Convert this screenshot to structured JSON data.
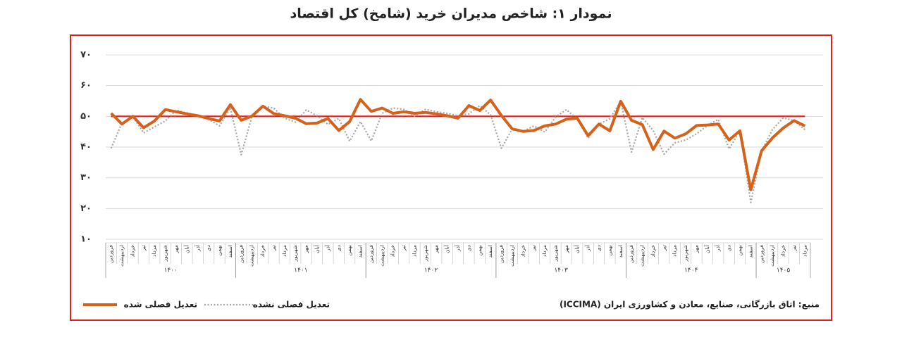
{
  "chart_data": {
    "type": "line",
    "title": "نمودار ۱: شاخص مدیران خرید (شامخ) کل اقتصاد",
    "source": "منبع: اتاق بازرگانی، صنایع، معادن و کشاورزی ایران (ICCIMA)",
    "categories": [
      "فروردین",
      "اردیبهشت",
      "خرداد",
      "تیر",
      "مرداد",
      "شهریور",
      "مهر",
      "آبان",
      "آذر",
      "دی",
      "بهمن",
      "اسفند",
      "فروردین",
      "اردیبهشت",
      "خرداد",
      "تیر",
      "مرداد",
      "شهریور",
      "مهر",
      "آبان",
      "آذر",
      "دی",
      "بهمن",
      "اسفند",
      "فروردین",
      "اردیبهشت",
      "خرداد",
      "تیر",
      "مرداد",
      "شهریور",
      "مهر",
      "آبان",
      "آذر",
      "دی",
      "بهمن",
      "اسفند",
      "فروردین",
      "اردیبهشت",
      "خرداد",
      "تیر",
      "مرداد",
      "شهریور",
      "مهر",
      "آبان",
      "آذر",
      "دی",
      "بهمن",
      "اسفند",
      "فروردین",
      "اردیبهشت",
      "خرداد",
      "تیر",
      "مرداد",
      "شهریور",
      "مهر",
      "آبان",
      "آذر",
      "دی",
      "بهمن",
      "اسفند",
      "فروردین",
      "اردیبهشت",
      "خرداد",
      "تیر",
      "مرداد"
    ],
    "groups": [
      {
        "label": "۱۴۰۰",
        "span": 12
      },
      {
        "label": "۱۴۰۱",
        "span": 12
      },
      {
        "label": "۱۴۰۲",
        "span": 12
      },
      {
        "label": "۱۴۰۳",
        "span": 12
      },
      {
        "label": "۱۴۰۴",
        "span": 12
      },
      {
        "label": "۱۴۰۵",
        "span": 5
      }
    ],
    "series": [
      {
        "name": "تعدیل فصلی شده",
        "color": "#d4621b",
        "line_style": "solid",
        "values": [
          51.0,
          47.5,
          50.0,
          46.3,
          48.5,
          52.2,
          51.5,
          50.8,
          50.2,
          49.3,
          48.5,
          53.8,
          48.7,
          50.1,
          53.3,
          50.9,
          50.2,
          49.4,
          47.6,
          47.8,
          49.3,
          45.4,
          48.3,
          55.5,
          51.6,
          52.7,
          51.0,
          51.5,
          51.0,
          51.3,
          50.8,
          50.2,
          49.4,
          53.5,
          51.9,
          55.3,
          50.3,
          45.9,
          45.1,
          45.4,
          46.9,
          47.5,
          49.1,
          49.4,
          43.7,
          47.5,
          45.3,
          54.9,
          48.7,
          47.3,
          39.2,
          45.2,
          42.9,
          44.3,
          47.0,
          47.2,
          47.5,
          42.3,
          45.3,
          26.1,
          38.8,
          43.0,
          46.2,
          48.6,
          46.9
        ]
      },
      {
        "name": "تعدیل فصلی نشده",
        "color": "#a6a6a6",
        "line_style": "dotted",
        "values": [
          39.6,
          47.8,
          50.0,
          44.6,
          46.6,
          48.5,
          52.0,
          51.1,
          50.2,
          49.0,
          46.9,
          52.8,
          37.5,
          50.1,
          53.3,
          52.7,
          49.4,
          48.1,
          52.1,
          50.2,
          47.4,
          49.3,
          41.9,
          48.3,
          42.0,
          51.0,
          52.7,
          52.3,
          50.0,
          52.3,
          51.5,
          51.0,
          50.2,
          50.8,
          53.5,
          50.5,
          39.6,
          45.9,
          45.1,
          46.9,
          44.9,
          49.8,
          52.2,
          49.1,
          42.9,
          47.5,
          49.2,
          54.9,
          38.4,
          49.6,
          45.4,
          37.7,
          41.4,
          42.3,
          44.3,
          47.0,
          49.0,
          39.4,
          45.3,
          22.0,
          38.8,
          45.7,
          49.5,
          48.6,
          45.6
        ]
      }
    ],
    "reference_line": {
      "value": 50,
      "color": "#e0201b"
    },
    "ylim": [
      10,
      70
    ],
    "yticks": [
      {
        "value": 10,
        "label": "۱۰"
      },
      {
        "value": 20,
        "label": "۲۰"
      },
      {
        "value": 30,
        "label": "۳۰"
      },
      {
        "value": 40,
        "label": "۴۰"
      },
      {
        "value": 50,
        "label": "۵۰"
      },
      {
        "value": 60,
        "label": "۶۰"
      },
      {
        "value": 70,
        "label": "۷۰"
      }
    ],
    "grid": true
  }
}
